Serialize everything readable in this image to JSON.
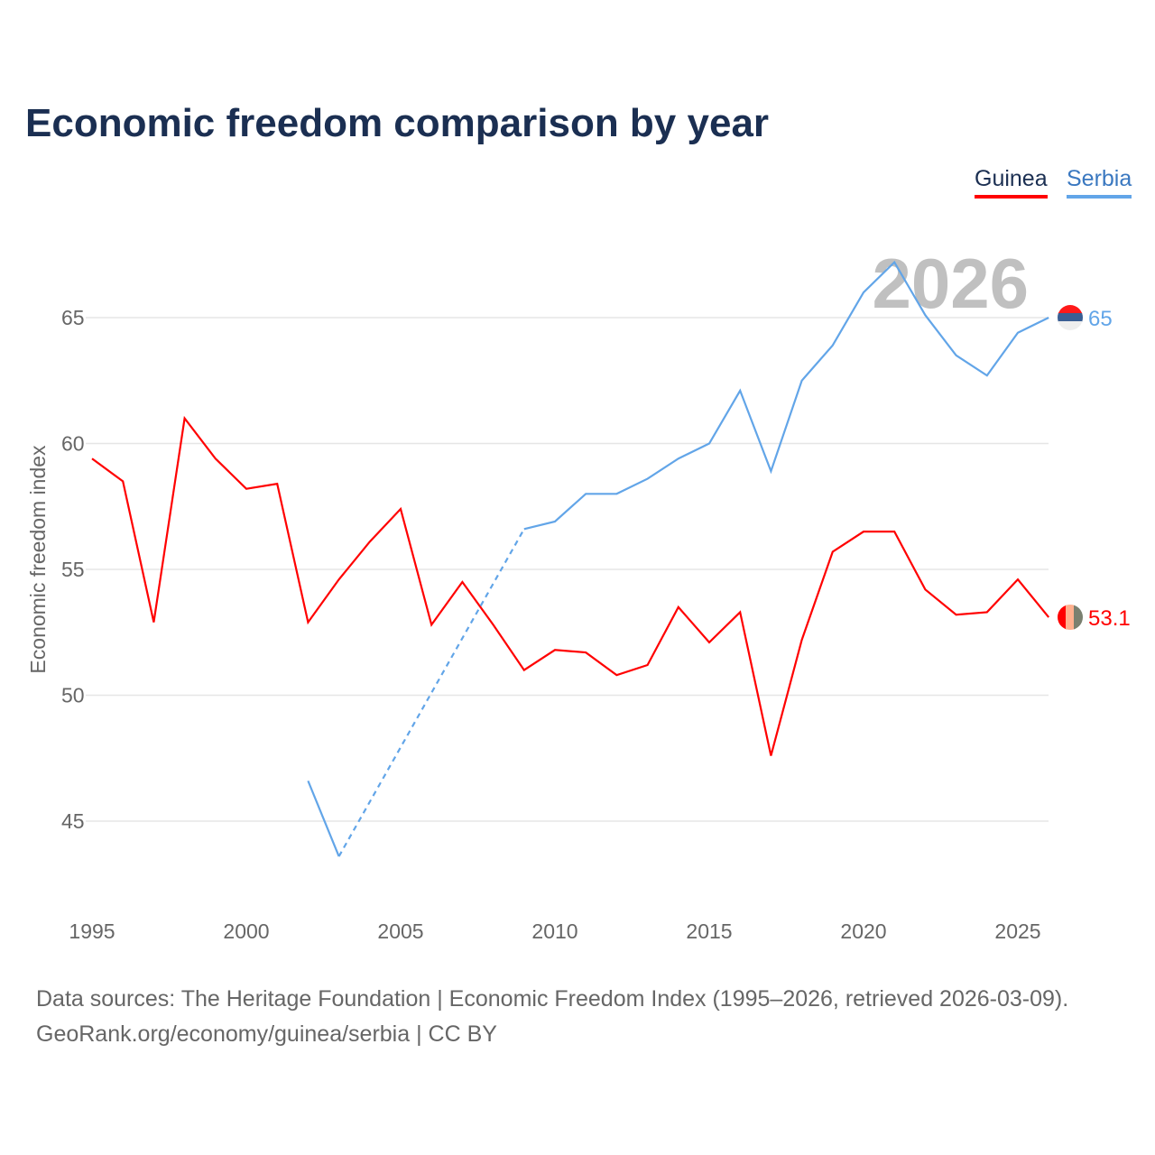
{
  "title": "Economic freedom comparison by year",
  "footer": {
    "line1": "Data sources: The Heritage Foundation | Economic Freedom Index (1995–2026, retrieved 2026-03-09).",
    "line2": "GeoRank.org/economy/guinea/serbia | CC BY"
  },
  "chart_data": {
    "type": "line",
    "title": "Economic freedom comparison by year",
    "ylabel": "Economic freedom index",
    "xlabel": "",
    "year_label": "2026",
    "xlim": [
      1995,
      2026
    ],
    "ylim": [
      42,
      68
    ],
    "x_ticks": [
      1995,
      2000,
      2005,
      2010,
      2015,
      2020,
      2025
    ],
    "y_ticks": [
      45,
      50,
      55,
      60,
      65
    ],
    "grid": true,
    "legend_placement": "top-right",
    "x": [
      1995,
      1996,
      1997,
      1998,
      1999,
      2000,
      2001,
      2002,
      2003,
      2004,
      2005,
      2006,
      2007,
      2008,
      2009,
      2010,
      2011,
      2012,
      2013,
      2014,
      2015,
      2016,
      2017,
      2018,
      2019,
      2020,
      2021,
      2022,
      2023,
      2024,
      2025,
      2026
    ],
    "series": [
      {
        "name": "Guinea",
        "color": "#ff0000",
        "end_label": "53.1",
        "values": [
          59.4,
          58.5,
          52.9,
          61.0,
          59.4,
          58.2,
          58.4,
          52.9,
          54.6,
          56.1,
          57.4,
          52.8,
          54.5,
          52.8,
          51.0,
          51.8,
          51.7,
          50.8,
          51.2,
          53.5,
          52.1,
          53.3,
          47.6,
          52.2,
          55.7,
          56.5,
          56.5,
          54.2,
          53.2,
          53.3,
          54.6,
          53.1
        ]
      },
      {
        "name": "Serbia",
        "color": "#62a5e8",
        "end_label": "65",
        "values": [
          null,
          null,
          null,
          null,
          null,
          null,
          null,
          46.6,
          43.6,
          null,
          null,
          null,
          null,
          null,
          56.6,
          56.9,
          58.0,
          58.0,
          58.6,
          59.4,
          60.0,
          62.1,
          58.9,
          62.5,
          63.9,
          66.0,
          67.2,
          65.1,
          63.5,
          62.7,
          64.4,
          65.0
        ]
      }
    ]
  }
}
